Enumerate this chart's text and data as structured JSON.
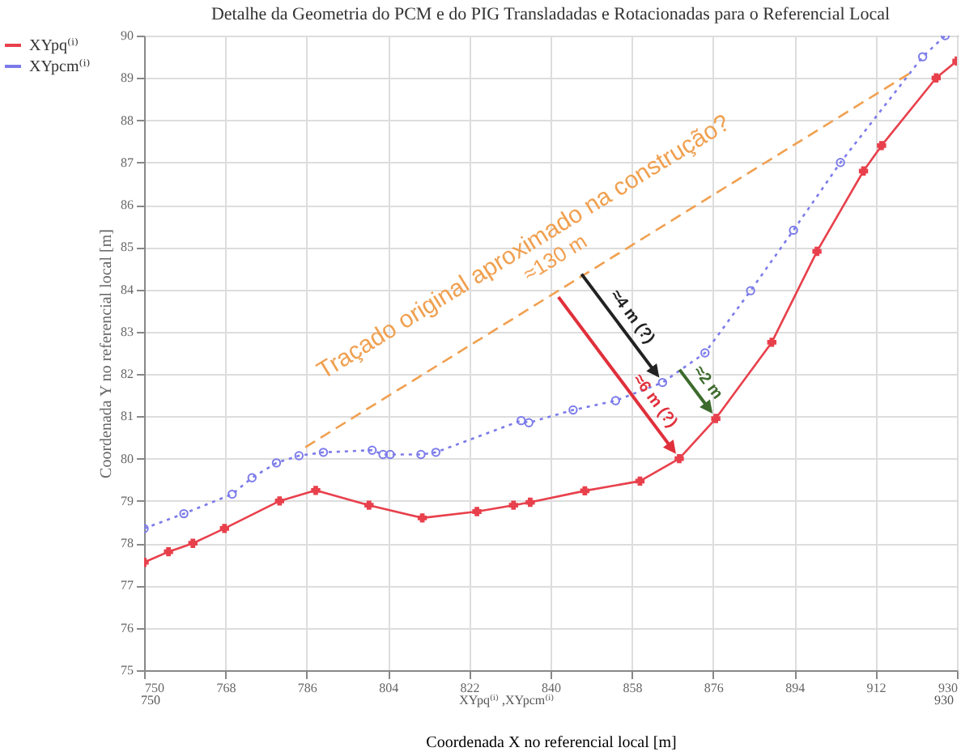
{
  "chart_data": {
    "type": "line",
    "title": "Detalhe da Geometria do PCM e do PIG Transladadas e Rotacionadas para o Referencial Local",
    "xlabel": "Coordenada X no referencial local [m]",
    "ylabel": "Coordenada Y no referencial local [m]",
    "xlim": [
      750,
      930
    ],
    "xticks": [
      750,
      768,
      786,
      804,
      822,
      840,
      858,
      876,
      894,
      912,
      930
    ],
    "ylim": [
      75,
      90
    ],
    "yticks": [
      75,
      76,
      77,
      78,
      79,
      80,
      81,
      82,
      83,
      84,
      85,
      86,
      87,
      88,
      89,
      90
    ],
    "grid": true,
    "legend": "left",
    "series": [
      {
        "name": "XYpq⁽ⁱ⁾",
        "color": "#e8404c",
        "marker": "cross",
        "line_style": "solid",
        "x": [
          750,
          755.4,
          760.8,
          767.8,
          780,
          788,
          799.8,
          811.6,
          823.7,
          831.8,
          835.5,
          847.6,
          859.8,
          868.5,
          876.6,
          889,
          899,
          909.3,
          913.3,
          925.4,
          930
        ],
        "values": [
          77.55,
          77.8,
          78.0,
          78.35,
          79.0,
          79.25,
          78.9,
          78.6,
          78.75,
          78.9,
          78.97,
          79.24,
          79.47,
          80.0,
          80.95,
          82.75,
          84.9,
          86.8,
          87.4,
          89.0,
          89.4
        ]
      },
      {
        "name": "XYpcm⁽ⁱ⁾",
        "color": "#7b7bea",
        "marker": "circle",
        "line_style": "dotted",
        "x": [
          750,
          758.8,
          769.5,
          773.9,
          779.3,
          784.3,
          789.7,
          800.5,
          802.9,
          804.5,
          811.3,
          814.6,
          833.5,
          835.2,
          845,
          854.4,
          864.8,
          874.2,
          884.3,
          893.8,
          904.2,
          922.4,
          927.4
        ],
        "values": [
          78.35,
          78.7,
          79.16,
          79.55,
          79.9,
          80.07,
          80.15,
          80.2,
          80.1,
          80.1,
          80.1,
          80.15,
          80.9,
          80.85,
          81.15,
          81.37,
          81.8,
          82.5,
          83.97,
          85.4,
          87.0,
          89.5,
          90.0
        ]
      },
      {
        "color": "#f0a050",
        "marker": "none",
        "line_style": "dashed",
        "x": [
          785.7,
          919.4
        ],
        "values": [
          80.27,
          89.1
        ]
      }
    ],
    "annotations": [
      "Traçado original aproximado na construção?",
      "≈130 m",
      {
        "text": "≈6 m (?)",
        "x": 868.5,
        "y": 80.0
      },
      {
        "text": "≈4 m (?)",
        "x": 864.8,
        "y": 81.8
      },
      {
        "text": "≈2 m",
        "x": 876.6,
        "y": 80.95
      },
      "XYpq⁽ⁱ⁾ ,XYpcm⁽ⁱ⁾",
      "750",
      "930"
    ]
  }
}
